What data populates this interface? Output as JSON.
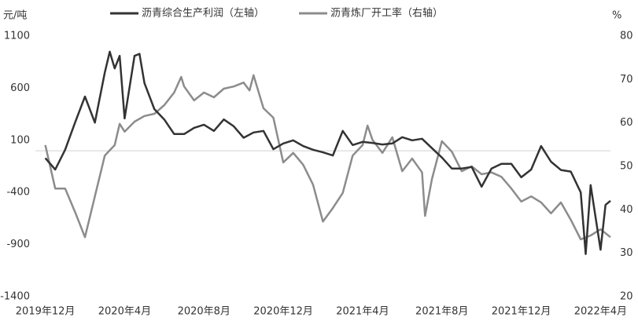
{
  "chart_data": {
    "type": "line",
    "y_unit": "元/吨",
    "y2_unit": "%",
    "xlim": [
      -0.5,
      28.5
    ],
    "xticks": [
      {
        "value": 0,
        "label": "2019年12月"
      },
      {
        "value": 4,
        "label": "2020年4月"
      },
      {
        "value": 8,
        "label": "2020年8月"
      },
      {
        "value": 12,
        "label": "2020年12月"
      },
      {
        "value": 16,
        "label": "2021年4月"
      },
      {
        "value": 20,
        "label": "2021年8月"
      },
      {
        "value": 24,
        "label": "2021年12月"
      },
      {
        "value": 28,
        "label": "2022年4月"
      }
    ],
    "ylim": [
      -1400,
      1100
    ],
    "yticks": [
      -1400,
      -900,
      -400,
      100,
      600,
      1100
    ],
    "y2lim": [
      20,
      80
    ],
    "y2ticks": [
      20,
      30,
      40,
      50,
      60,
      70,
      80
    ],
    "series": [
      {
        "name": "沥青综合生产利润（左轴）",
        "color": "#333333",
        "x": [
          0,
          0.5,
          1,
          1.5,
          2,
          2.5,
          3,
          3.25,
          3.5,
          3.75,
          4,
          4.5,
          4.75,
          5,
          5.5,
          6,
          6.5,
          7,
          7.5,
          8,
          8.5,
          9,
          9.5,
          10,
          10.5,
          11,
          11.5,
          12,
          12.5,
          13,
          13.5,
          14,
          14.5,
          15,
          15.5,
          16,
          16.5,
          17,
          17.5,
          18,
          18.5,
          19,
          19.5,
          20,
          20.5,
          21,
          21.5,
          22,
          22.5,
          23,
          23.5,
          24,
          24.5,
          25,
          25.5,
          26,
          26.5,
          27,
          27.25,
          27.5,
          28,
          28.25,
          28.5
        ],
        "values": [
          -70,
          -180,
          10,
          270,
          520,
          270,
          750,
          950,
          790,
          910,
          310,
          910,
          930,
          650,
          400,
          300,
          160,
          160,
          220,
          250,
          190,
          300,
          235,
          125,
          175,
          190,
          15,
          70,
          100,
          45,
          10,
          -15,
          -45,
          190,
          55,
          85,
          75,
          60,
          70,
          130,
          100,
          115,
          25,
          -65,
          -170,
          -170,
          -155,
          -345,
          -170,
          -125,
          -125,
          -255,
          -180,
          45,
          -105,
          -185,
          -200,
          -400,
          -990,
          -330,
          -950,
          -520,
          -480
        ]
      },
      {
        "name": "沥青炼厂开工率（右轴）",
        "color": "#8c8c8c",
        "axis": "y2",
        "x": [
          0,
          0.5,
          1,
          1.5,
          2,
          2.5,
          3,
          3.5,
          3.75,
          4,
          4.5,
          5,
          5.5,
          6,
          6.5,
          6.85,
          7,
          7.5,
          8,
          8.5,
          9,
          9.5,
          10,
          10.3,
          10.5,
          11,
          11.5,
          12,
          12.5,
          13,
          13.5,
          14,
          14.5,
          15,
          15.5,
          16,
          16.25,
          16.5,
          17,
          17.5,
          18,
          18.5,
          19,
          19.15,
          19.5,
          20,
          20.5,
          21,
          21.5,
          22,
          22.5,
          23,
          23.5,
          24,
          24.5,
          25,
          25.5,
          26,
          26.5,
          27,
          27.5,
          28,
          28.5
        ],
        "values": [
          54.9,
          44.9,
          44.9,
          39.5,
          33.7,
          43.1,
          52.5,
          54.9,
          59.8,
          58.0,
          60.3,
          61.6,
          62.1,
          64.1,
          67.0,
          70.6,
          68.4,
          65.2,
          67.0,
          65.9,
          67.9,
          68.4,
          69.3,
          67.5,
          71.0,
          63.4,
          61.2,
          50.9,
          53.1,
          50.4,
          45.8,
          37.3,
          40.4,
          43.9,
          52.5,
          54.9,
          59.4,
          56.1,
          53.1,
          56.7,
          48.9,
          51.8,
          48.6,
          38.6,
          47.1,
          55.8,
          53.4,
          48.9,
          50.0,
          48.2,
          48.6,
          47.6,
          44.9,
          41.9,
          43.1,
          41.7,
          39.2,
          41.7,
          37.7,
          33.2,
          34.1,
          35.5,
          33.7
        ]
      }
    ]
  }
}
